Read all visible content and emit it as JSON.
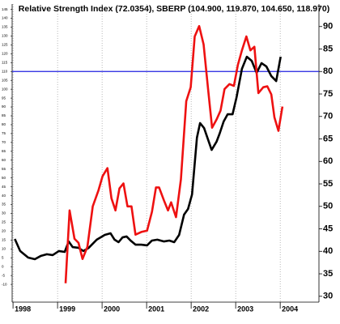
{
  "chart_data": {
    "type": "line",
    "title": "Relative Strength Index (72.0354), SBERP (104.900, 119.870, 104.650, 118.970)",
    "xlim": [
      1997.98,
      2004.87
    ],
    "xticks": [
      1998,
      1999,
      2000,
      2001,
      2002,
      2003,
      2004
    ],
    "ylim": [
      -20,
      148
    ],
    "yticks": [
      -10,
      -5,
      0,
      5,
      10,
      15,
      20,
      25,
      30,
      35,
      40,
      45,
      50,
      55,
      60,
      65,
      70,
      75,
      80,
      85,
      90,
      95,
      100,
      105,
      110,
      115,
      120,
      125,
      130,
      135,
      140,
      145
    ],
    "y2lim": [
      28.7,
      95
    ],
    "y2ticks": [
      30,
      35,
      40,
      45,
      50,
      55,
      60,
      65,
      70,
      75,
      80,
      85,
      90
    ],
    "grid": true,
    "series": [
      {
        "color": "#000000",
        "x": [
          1998.04,
          1998.16,
          1998.34,
          1998.49,
          1998.62,
          1998.76,
          1998.89,
          1999.03,
          1999.16,
          1999.25,
          1999.34,
          1999.47,
          1999.58,
          1999.7,
          1999.88,
          2000.06,
          2000.19,
          2000.28,
          2000.37,
          2000.46,
          2000.55,
          2000.64,
          2000.75,
          2000.88,
          2001.01,
          2001.12,
          2001.24,
          2001.39,
          2001.51,
          2001.62,
          2001.73,
          2001.84,
          2001.93,
          2002.02,
          2002.13,
          2002.2,
          2002.29,
          2002.46,
          2002.57,
          2002.64,
          2002.73,
          2002.82,
          2002.93,
          2003.02,
          2003.14,
          2003.25,
          2003.36,
          2003.47,
          2003.58,
          2003.69,
          2003.8,
          2003.91,
          2004.01
        ],
        "values": [
          15.6,
          8.8,
          5.1,
          4.2,
          6,
          7,
          6.5,
          8.8,
          8.3,
          14.2,
          11,
          10.6,
          8.8,
          10.6,
          15.2,
          17.9,
          18.8,
          15.2,
          13.8,
          16.5,
          17,
          14.7,
          12.4,
          12.4,
          12,
          14.7,
          15.2,
          14.2,
          14.7,
          13.8,
          17.9,
          29.3,
          32.5,
          40.7,
          72.7,
          80.9,
          78.1,
          65.8,
          70.4,
          75,
          81.8,
          85.9,
          85.9,
          95.5,
          111.5,
          118.3,
          116,
          109.2,
          114.7,
          112.8,
          107.4,
          104.6,
          118.3
        ]
      },
      {
        "color": "#ee1111",
        "axis": "y2",
        "x": [
          1999.18,
          1999.27,
          1999.38,
          1999.47,
          1999.56,
          1999.67,
          1999.79,
          1999.92,
          2000.01,
          2000.12,
          2000.21,
          2000.3,
          2000.39,
          2000.48,
          2000.57,
          2000.66,
          2000.75,
          2000.88,
          2001.01,
          2001.12,
          2001.21,
          2001.28,
          2001.39,
          2001.48,
          2001.55,
          2001.66,
          2001.77,
          2001.89,
          2001.99,
          2002.08,
          2002.18,
          2002.28,
          2002.38,
          2002.47,
          2002.57,
          2002.66,
          2002.75,
          2002.86,
          2002.96,
          2003.05,
          2003.14,
          2003.24,
          2003.33,
          2003.42,
          2003.51,
          2003.62,
          2003.71,
          2003.8,
          2003.87,
          2003.96,
          2004.05
        ],
        "values": [
          32.9,
          49.1,
          42.8,
          41.9,
          38.3,
          41,
          50,
          53.6,
          56.7,
          58.5,
          51.8,
          49.1,
          54,
          55.1,
          50,
          50,
          43.7,
          44.3,
          44.6,
          48.8,
          54.2,
          54.2,
          51.3,
          49.1,
          50.9,
          47.6,
          56,
          73.4,
          76.5,
          87.8,
          90.1,
          86,
          76.1,
          67.5,
          69.3,
          71.3,
          76.1,
          77.2,
          76.8,
          81.5,
          84.7,
          87.8,
          84.7,
          85.5,
          75.2,
          76.5,
          76.7,
          74.9,
          69.8,
          66.8,
          72.2
        ]
      }
    ],
    "reference_lines": [
      {
        "axis": "y2",
        "value": 80,
        "color": "#2020e0"
      }
    ]
  }
}
